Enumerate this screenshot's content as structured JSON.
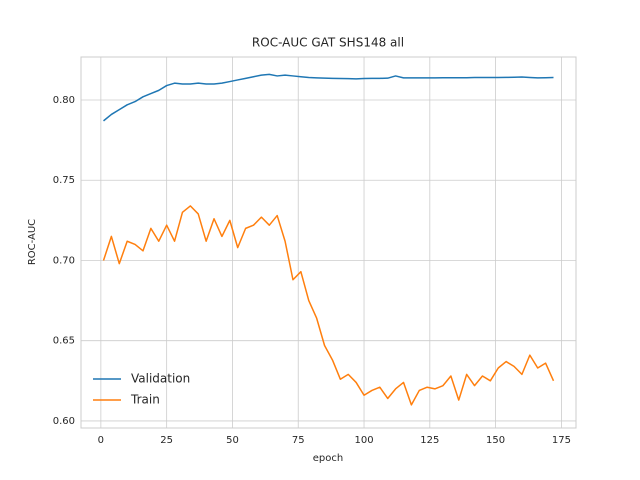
{
  "chart_data": {
    "type": "line",
    "title": "ROC-AUC GAT SHS148 all",
    "xlabel": "epoch",
    "ylabel": "ROC-AUC",
    "x": [
      1,
      4,
      7,
      10,
      13,
      16,
      19,
      22,
      25,
      28,
      31,
      34,
      37,
      40,
      43,
      46,
      49,
      52,
      55,
      58,
      61,
      64,
      67,
      70,
      73,
      76,
      79,
      82,
      85,
      88,
      91,
      94,
      97,
      100,
      103,
      106,
      109,
      112,
      115,
      118,
      121,
      124,
      127,
      130,
      133,
      136,
      139,
      142,
      145,
      148,
      151,
      154,
      157,
      160,
      163,
      166,
      169,
      172
    ],
    "series": [
      {
        "name": "Validation",
        "color": "#1f77b4",
        "values": [
          0.787,
          0.791,
          0.794,
          0.797,
          0.799,
          0.802,
          0.804,
          0.806,
          0.809,
          0.8105,
          0.81,
          0.81,
          0.8105,
          0.81,
          0.81,
          0.8105,
          0.8115,
          0.8125,
          0.8135,
          0.8145,
          0.8155,
          0.816,
          0.815,
          0.8155,
          0.815,
          0.8145,
          0.814,
          0.8138,
          0.8136,
          0.8135,
          0.8134,
          0.8133,
          0.8132,
          0.8134,
          0.8135,
          0.8135,
          0.8136,
          0.815,
          0.8138,
          0.8138,
          0.8138,
          0.8138,
          0.8138,
          0.8139,
          0.8139,
          0.8139,
          0.8139,
          0.814,
          0.814,
          0.814,
          0.814,
          0.8141,
          0.8142,
          0.8143,
          0.814,
          0.8138,
          0.8139,
          0.814
        ]
      },
      {
        "name": "Train",
        "color": "#ff7f0e",
        "values": [
          0.7,
          0.715,
          0.698,
          0.712,
          0.71,
          0.706,
          0.72,
          0.712,
          0.722,
          0.712,
          0.73,
          0.734,
          0.729,
          0.712,
          0.726,
          0.715,
          0.725,
          0.708,
          0.72,
          0.722,
          0.727,
          0.722,
          0.728,
          0.712,
          0.688,
          0.693,
          0.675,
          0.664,
          0.647,
          0.638,
          0.626,
          0.629,
          0.624,
          0.616,
          0.619,
          0.621,
          0.614,
          0.62,
          0.624,
          0.61,
          0.619,
          0.621,
          0.62,
          0.622,
          0.628,
          0.613,
          0.629,
          0.622,
          0.628,
          0.625,
          0.633,
          0.637,
          0.634,
          0.629,
          0.641,
          0.633,
          0.636,
          0.625
        ]
      }
    ],
    "xlim": [
      -7.55,
      180.55
    ],
    "ylim": [
      0.5956,
      0.8268
    ],
    "xticks": [
      0,
      25,
      50,
      75,
      100,
      125,
      150,
      175
    ],
    "yticks": [
      {
        "value": 0.6,
        "label": "0.60"
      },
      {
        "value": 0.65,
        "label": "0.65"
      },
      {
        "value": 0.7,
        "label": "0.70"
      },
      {
        "value": 0.75,
        "label": "0.75"
      },
      {
        "value": 0.8,
        "label": "0.80"
      }
    ],
    "grid": true,
    "legend": "lower left"
  }
}
